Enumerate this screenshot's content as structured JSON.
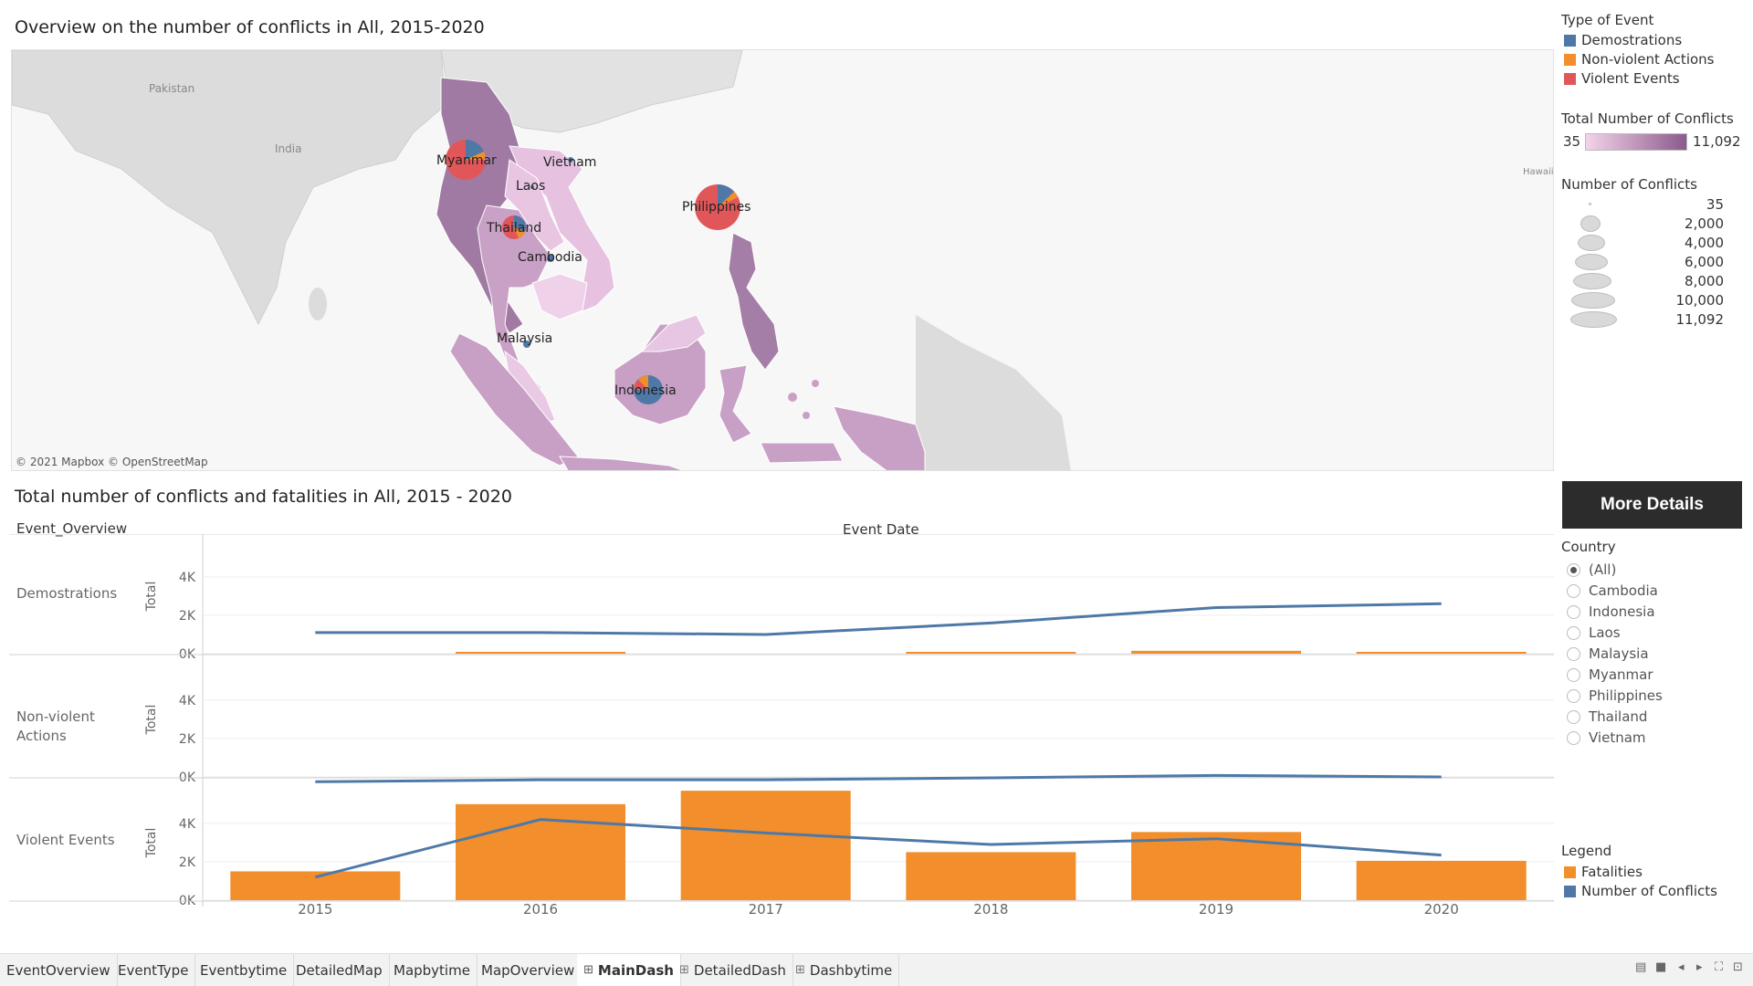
{
  "map_title": "Overview on the number of conflicts in All, 2015-2020",
  "map_attribution": "© 2021 Mapbox © OpenStreetMap",
  "map_labels": {
    "pakistan": "Pakistan",
    "india": "India",
    "hawaii": "Hawaii",
    "myanmar": "Myanmar",
    "vietnam": "Vietnam",
    "laos": "Laos",
    "thailand": "Thailand",
    "cambodia": "Cambodia",
    "philippines": "Philippines",
    "malaysia": "Malaysia",
    "indonesia": "Indonesia"
  },
  "legend_type": {
    "title": "Type of Event",
    "items": [
      {
        "label": "Demostrations",
        "color": "#4e79a7"
      },
      {
        "label": "Non-violent Actions",
        "color": "#f28e2b"
      },
      {
        "label": "Violent Events",
        "color": "#e15759"
      }
    ]
  },
  "legend_total": {
    "title": "Total Number of Conflicts",
    "min": "35",
    "max": "11,092",
    "color_low": "#f3d3ea",
    "color_high": "#8b5a8c"
  },
  "legend_size": {
    "title": "Number of Conflicts",
    "values": [
      "35",
      "2,000",
      "4,000",
      "6,000",
      "8,000",
      "10,000",
      "11,092"
    ]
  },
  "chart_title": "Total number of conflicts and fatalities in All, 2015 - 2020",
  "row_header": "Event_Overview",
  "column_header": "Event Date",
  "axis_label": "Total",
  "button_label": "More Details",
  "country_filter": {
    "title": "Country",
    "options": [
      "(All)",
      "Cambodia",
      "Indonesia",
      "Laos",
      "Malaysia",
      "Myanmar",
      "Philippines",
      "Thailand",
      "Vietnam"
    ],
    "selected": "(All)"
  },
  "bottom_legend": {
    "title": "Legend",
    "items": [
      {
        "label": "Fatalities",
        "color": "#f28e2b"
      },
      {
        "label": "Number of Conflicts",
        "color": "#4e79a7"
      }
    ]
  },
  "tabs": [
    {
      "label": "EventOverview",
      "icon": ""
    },
    {
      "label": "EventType",
      "icon": ""
    },
    {
      "label": "Eventbytime",
      "icon": ""
    },
    {
      "label": "DetailedMap",
      "icon": ""
    },
    {
      "label": "Mapbytime",
      "icon": ""
    },
    {
      "label": "MapOverview",
      "icon": ""
    },
    {
      "label": "MainDash",
      "icon": "dashboard-icon",
      "active": true
    },
    {
      "label": "DetailedDash",
      "icon": "dashboard-icon"
    },
    {
      "label": "Dashbytime",
      "icon": "dashboard-icon"
    }
  ],
  "chart_data": {
    "type": "bar+line",
    "categories": [
      "2015",
      "2016",
      "2017",
      "2018",
      "2019",
      "2020"
    ],
    "y_ticks": [
      "0K",
      "2K",
      "4K"
    ],
    "ylim": [
      0,
      5800
    ],
    "rows": [
      {
        "name": "Demostrations",
        "fatalities": [
          0,
          30,
          0,
          30,
          150,
          30
        ],
        "conflicts": [
          1100,
          1100,
          1000,
          1600,
          2400,
          2600
        ]
      },
      {
        "name": "Non-violent Actions",
        "fatalities": [
          0,
          0,
          0,
          0,
          0,
          0
        ],
        "conflicts": [
          -250,
          -150,
          -150,
          -50,
          80,
          0
        ]
      },
      {
        "name": "Violent Events",
        "fatalities": [
          1500,
          5000,
          5700,
          2500,
          3550,
          2050
        ],
        "conflicts": [
          1200,
          4200,
          3500,
          2900,
          3200,
          2350
        ]
      }
    ],
    "series": [
      {
        "name": "Fatalities"
      },
      {
        "name": "Number of Conflicts"
      }
    ],
    "colors": {
      "bar": "#f28e2b",
      "line": "#4e79a7"
    }
  }
}
